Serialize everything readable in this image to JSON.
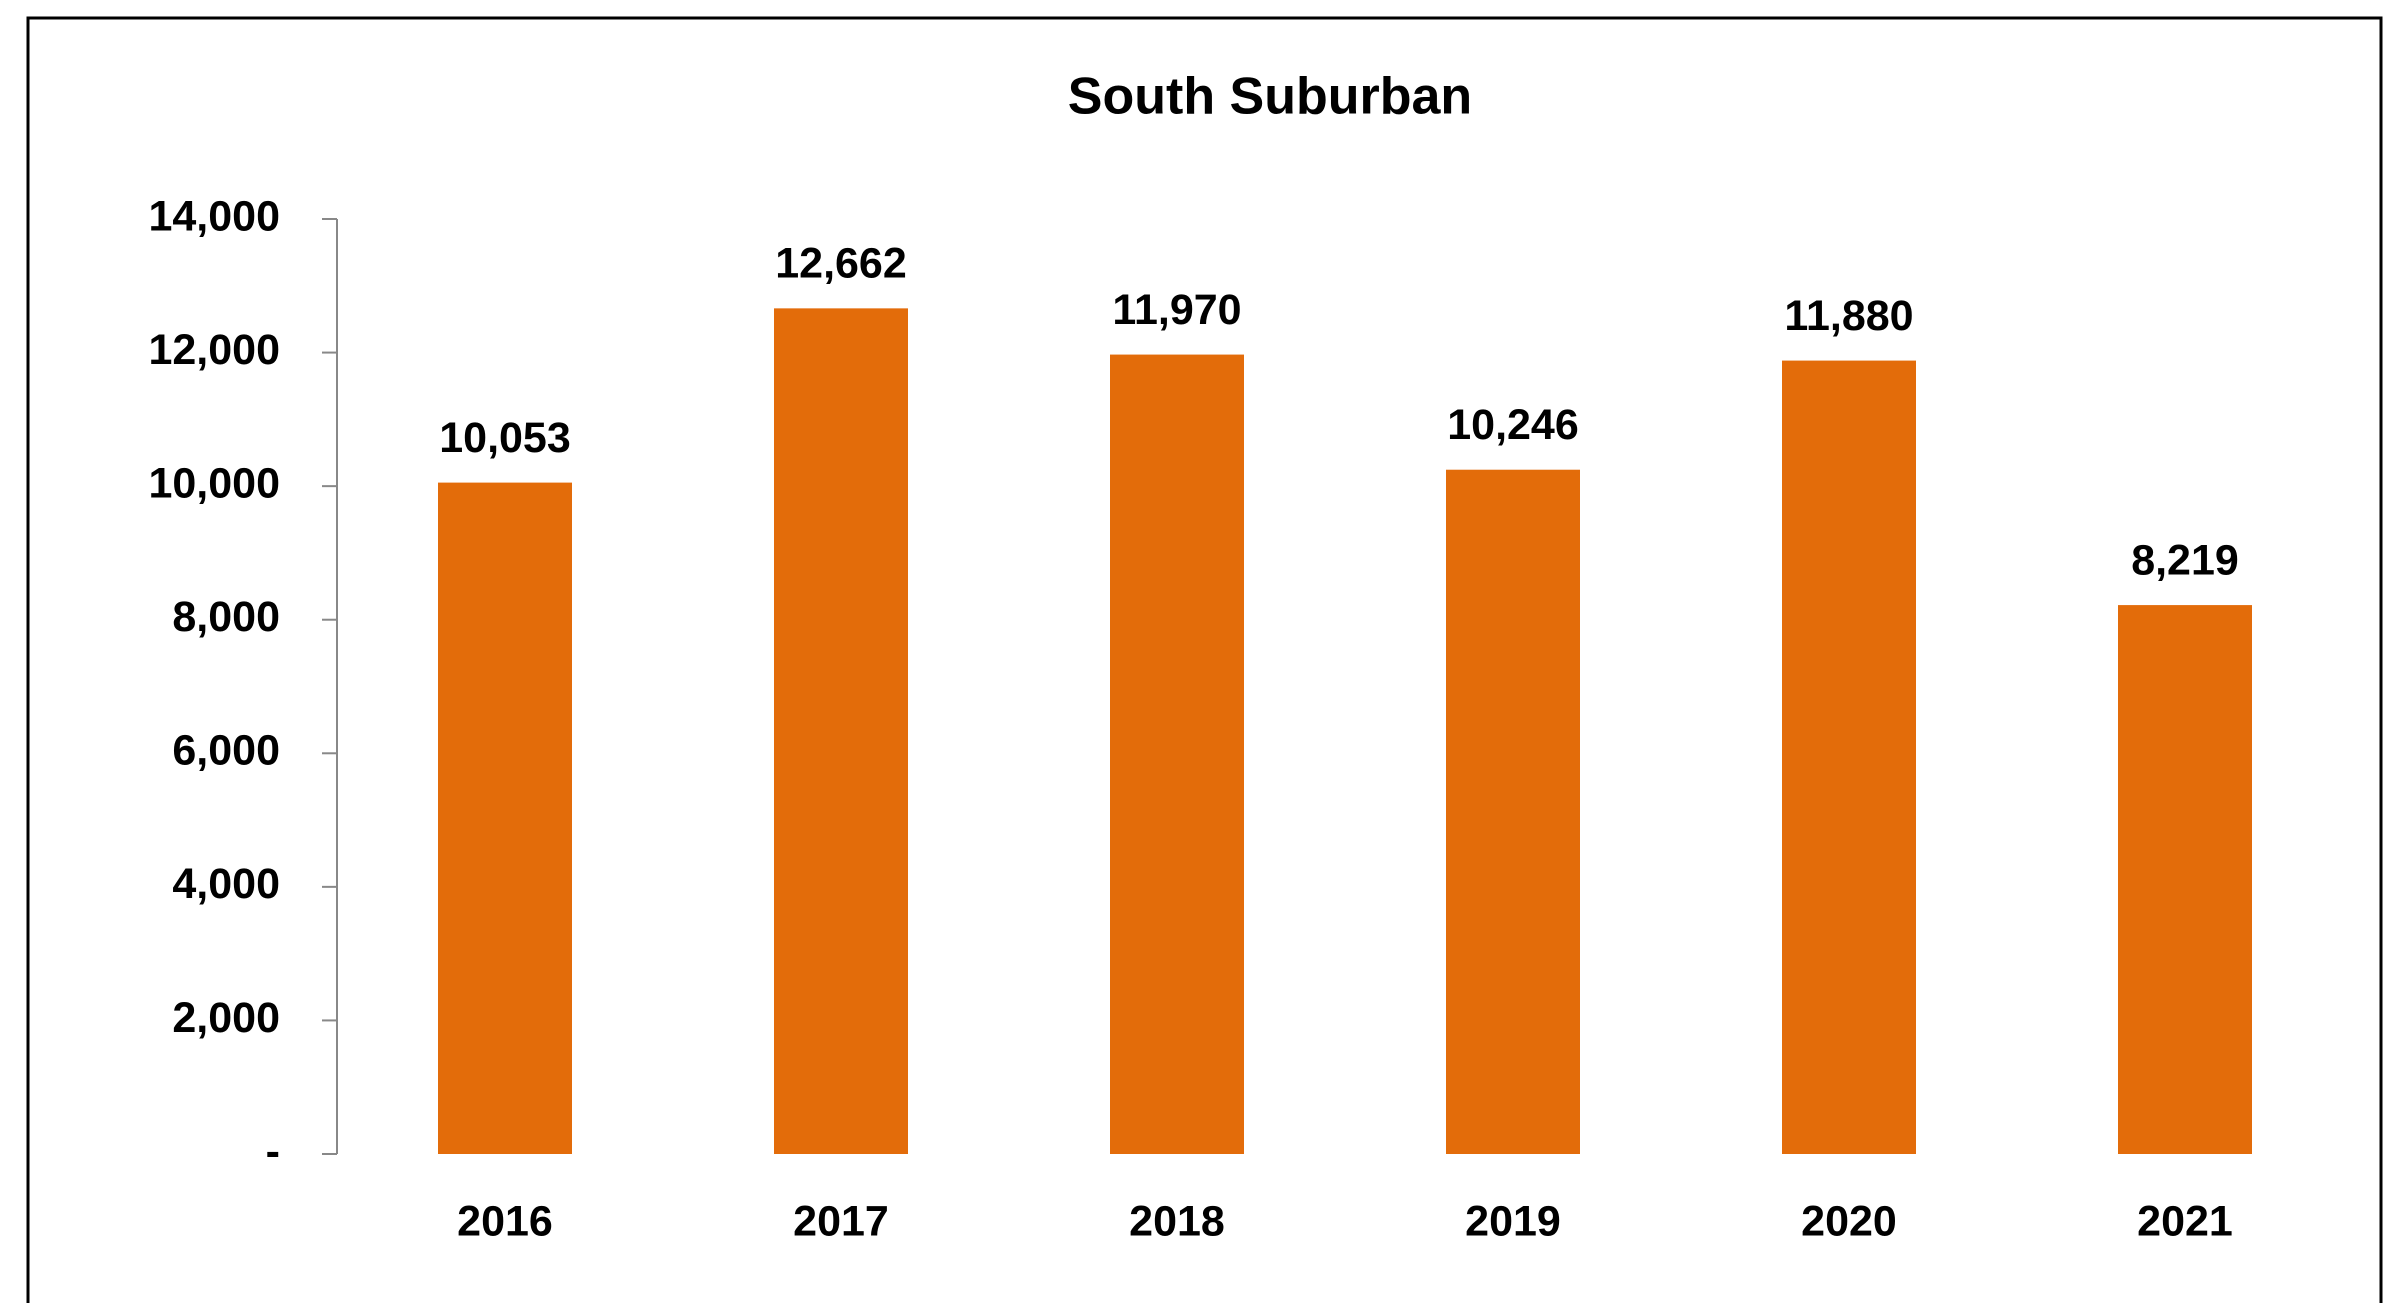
{
  "chart_data": {
    "type": "bar",
    "title": "South Suburban",
    "categories": [
      "2016",
      "2017",
      "2018",
      "2019",
      "2020",
      "2021"
    ],
    "values": [
      10053,
      12662,
      11970,
      10246,
      11880,
      8219
    ],
    "value_labels": [
      "10,053",
      "12,662",
      "11,970",
      "10,246",
      "11,880",
      "8,219"
    ],
    "color": "#e36c0a",
    "ylim": [
      0,
      14000
    ],
    "yticks": [
      {
        "value": 0,
        "label": "-"
      },
      {
        "value": 2000,
        "label": "2,000"
      },
      {
        "value": 4000,
        "label": "4,000"
      },
      {
        "value": 6000,
        "label": "6,000"
      },
      {
        "value": 8000,
        "label": "8,000"
      },
      {
        "value": 10000,
        "label": "10,000"
      },
      {
        "value": 12000,
        "label": "12,000"
      },
      {
        "value": 14000,
        "label": "14,000"
      }
    ],
    "grid": false
  }
}
